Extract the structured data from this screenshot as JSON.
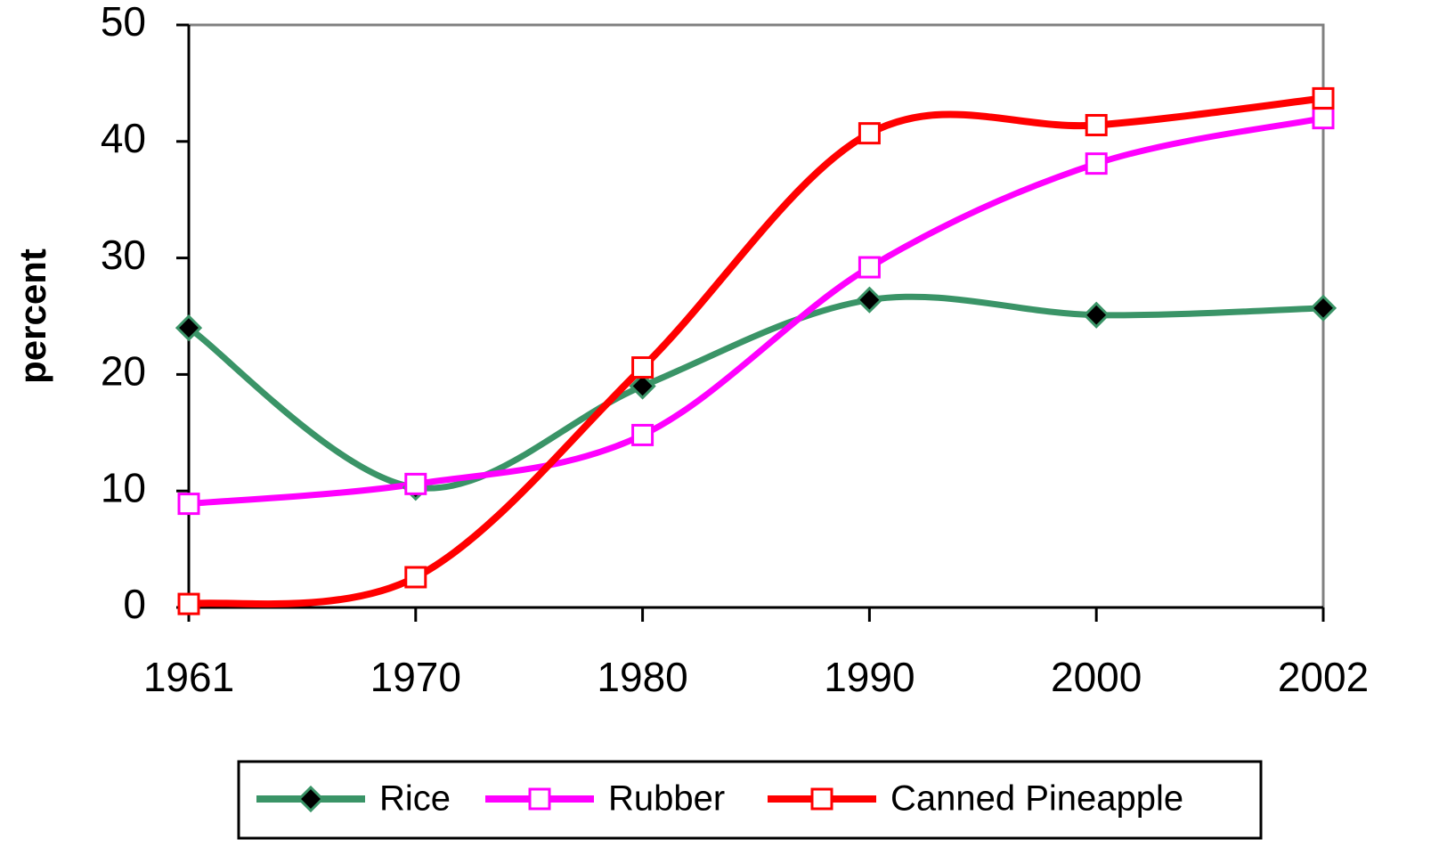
{
  "chart_data": {
    "type": "line",
    "y_label": "percent",
    "categories": [
      "1961",
      "1970",
      "1980",
      "1990",
      "2000",
      "2002"
    ],
    "series": [
      {
        "name": "Rice",
        "color": "#3a9467",
        "marker": "diamond",
        "values": [
          24.0,
          10.3,
          19.0,
          26.4,
          25.1,
          25.7
        ]
      },
      {
        "name": "Rubber",
        "color": "#ff00ff",
        "marker": "square",
        "values": [
          8.9,
          10.6,
          14.8,
          29.2,
          38.1,
          42.0
        ]
      },
      {
        "name": "Canned Pineapple",
        "color": "#ff0000",
        "marker": "square",
        "values": [
          0.3,
          2.6,
          20.6,
          40.7,
          41.4,
          43.7
        ]
      }
    ],
    "ylim": [
      0,
      50
    ],
    "yticks": [
      0,
      10,
      20,
      30,
      40,
      50
    ],
    "grid": false,
    "legend": "bottom"
  }
}
